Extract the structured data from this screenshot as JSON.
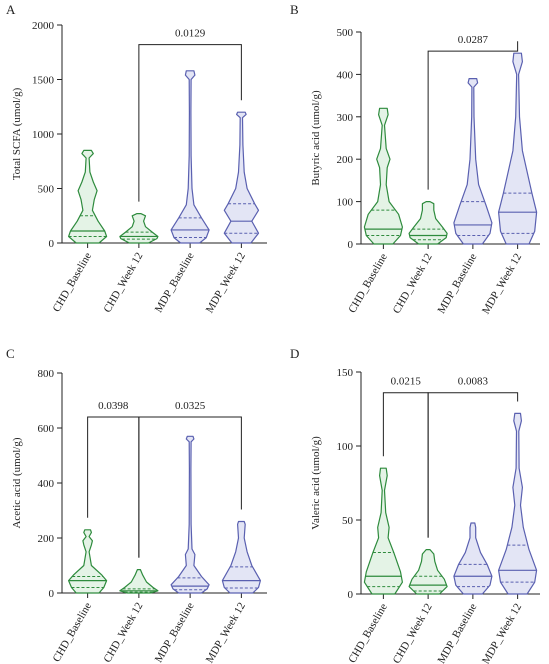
{
  "colors": {
    "green": "#2e8b3d",
    "greenFill": "#e4f3e6",
    "blue": "#5a60b0",
    "blueFill": "#e3e5f5",
    "axis": "#222222"
  },
  "chart_data": [
    {
      "type": "violin",
      "panel": "A",
      "ylabel": "Total SCFA (umol/g)",
      "ylim": [
        0,
        2000
      ],
      "yticks": [
        0,
        500,
        1000,
        1500,
        2000
      ],
      "categories": [
        "CHD_Baseline",
        "CHD_Week 12",
        "MDP_Baseline",
        "MDP_Week 12"
      ],
      "violins": [
        {
          "color": "green",
          "min": 0,
          "max": 850,
          "q1": 60,
          "median": 110,
          "q3": 250,
          "profile": [
            [
              0,
              0.6
            ],
            [
              60,
              1.0
            ],
            [
              110,
              0.9
            ],
            [
              200,
              0.55
            ],
            [
              300,
              0.25
            ],
            [
              400,
              0.35
            ],
            [
              480,
              0.5
            ],
            [
              560,
              0.3
            ],
            [
              650,
              0.12
            ],
            [
              780,
              0.08
            ],
            [
              820,
              0.3
            ],
            [
              850,
              0.2
            ]
          ]
        },
        {
          "color": "green",
          "min": 0,
          "max": 270,
          "q1": 35,
          "median": 60,
          "q3": 100,
          "profile": [
            [
              0,
              0.5
            ],
            [
              40,
              0.95
            ],
            [
              60,
              1.0
            ],
            [
              100,
              0.7
            ],
            [
              150,
              0.35
            ],
            [
              200,
              0.25
            ],
            [
              250,
              0.35
            ],
            [
              270,
              0.1
            ]
          ]
        },
        {
          "color": "blue",
          "min": 0,
          "max": 1580,
          "q1": 50,
          "median": 120,
          "q3": 230,
          "profile": [
            [
              0,
              0.5
            ],
            [
              50,
              0.85
            ],
            [
              120,
              1.0
            ],
            [
              230,
              0.6
            ],
            [
              350,
              0.2
            ],
            [
              500,
              0.1
            ],
            [
              800,
              0.05
            ],
            [
              1200,
              0.04
            ],
            [
              1500,
              0.05
            ],
            [
              1540,
              0.25
            ],
            [
              1580,
              0.2
            ]
          ]
        },
        {
          "color": "blue",
          "min": 0,
          "max": 1200,
          "q1": 90,
          "median": 200,
          "q3": 360,
          "profile": [
            [
              0,
              0.5
            ],
            [
              90,
              0.9
            ],
            [
              200,
              0.55
            ],
            [
              300,
              0.9
            ],
            [
              360,
              0.7
            ],
            [
              500,
              0.3
            ],
            [
              650,
              0.15
            ],
            [
              900,
              0.08
            ],
            [
              1150,
              0.06
            ],
            [
              1180,
              0.25
            ],
            [
              1200,
              0.2
            ]
          ]
        }
      ],
      "brackets": [
        {
          "from": 1,
          "to": 3,
          "label": "0.0129",
          "y": 1820
        }
      ]
    },
    {
      "type": "violin",
      "panel": "B",
      "ylabel": "Butyric acid (umol/g)",
      "ylim": [
        0,
        500
      ],
      "yticks": [
        0,
        100,
        200,
        300,
        400,
        500
      ],
      "categories": [
        "CHD_Baseline",
        "CHD_Week 12",
        "MDP_Baseline",
        "MDP_Week 12"
      ],
      "violins": [
        {
          "color": "green",
          "min": 0,
          "max": 320,
          "q1": 20,
          "median": 35,
          "q3": 80,
          "profile": [
            [
              0,
              0.5
            ],
            [
              20,
              0.9
            ],
            [
              40,
              1.0
            ],
            [
              70,
              0.8
            ],
            [
              100,
              0.3
            ],
            [
              140,
              0.15
            ],
            [
              180,
              0.2
            ],
            [
              200,
              0.35
            ],
            [
              225,
              0.15
            ],
            [
              280,
              0.06
            ],
            [
              305,
              0.25
            ],
            [
              320,
              0.2
            ]
          ]
        },
        {
          "color": "green",
          "min": 0,
          "max": 100,
          "q1": 10,
          "median": 20,
          "q3": 35,
          "profile": [
            [
              0,
              0.5
            ],
            [
              15,
              0.95
            ],
            [
              25,
              1.0
            ],
            [
              40,
              0.75
            ],
            [
              60,
              0.4
            ],
            [
              80,
              0.3
            ],
            [
              95,
              0.3
            ],
            [
              100,
              0.1
            ]
          ]
        },
        {
          "color": "blue",
          "min": 0,
          "max": 390,
          "q1": 20,
          "median": 45,
          "q3": 100,
          "profile": [
            [
              0,
              0.5
            ],
            [
              25,
              0.9
            ],
            [
              50,
              1.0
            ],
            [
              90,
              0.7
            ],
            [
              140,
              0.3
            ],
            [
              200,
              0.15
            ],
            [
              300,
              0.06
            ],
            [
              370,
              0.05
            ],
            [
              380,
              0.25
            ],
            [
              390,
              0.2
            ]
          ]
        },
        {
          "color": "blue",
          "min": 0,
          "max": 450,
          "q1": 25,
          "median": 75,
          "q3": 120,
          "profile": [
            [
              0,
              0.6
            ],
            [
              30,
              0.9
            ],
            [
              75,
              1.0
            ],
            [
              120,
              0.75
            ],
            [
              180,
              0.45
            ],
            [
              220,
              0.25
            ],
            [
              300,
              0.1
            ],
            [
              400,
              0.05
            ],
            [
              430,
              0.25
            ],
            [
              450,
              0.2
            ]
          ]
        }
      ],
      "brackets": [
        {
          "from": 1,
          "to": 3,
          "label": "0.0287",
          "y": 455
        }
      ]
    },
    {
      "type": "violin",
      "panel": "C",
      "ylabel": "Acetic acid (umol/g)",
      "ylim": [
        0,
        800
      ],
      "yticks": [
        0,
        200,
        400,
        600,
        800
      ],
      "categories": [
        "CHD_Baseline",
        "CHD_Week 12",
        "MDP_Baseline",
        "MDP_Week 12"
      ],
      "violins": [
        {
          "color": "green",
          "min": 0,
          "max": 230,
          "q1": 20,
          "median": 45,
          "q3": 60,
          "profile": [
            [
              0,
              0.6
            ],
            [
              20,
              0.85
            ],
            [
              45,
              1.0
            ],
            [
              65,
              0.75
            ],
            [
              100,
              0.2
            ],
            [
              150,
              0.08
            ],
            [
              175,
              0.2
            ],
            [
              190,
              0.25
            ],
            [
              205,
              0.08
            ],
            [
              220,
              0.2
            ],
            [
              230,
              0.15
            ]
          ]
        },
        {
          "color": "green",
          "min": 0,
          "max": 85,
          "q1": 3,
          "median": 8,
          "q3": 15,
          "profile": [
            [
              0,
              0.6
            ],
            [
              8,
              1.0
            ],
            [
              20,
              0.75
            ],
            [
              40,
              0.4
            ],
            [
              65,
              0.2
            ],
            [
              85,
              0.08
            ]
          ]
        },
        {
          "color": "blue",
          "min": 0,
          "max": 570,
          "q1": 12,
          "median": 25,
          "q3": 55,
          "profile": [
            [
              0,
              0.6
            ],
            [
              15,
              0.9
            ],
            [
              30,
              1.0
            ],
            [
              60,
              0.6
            ],
            [
              100,
              0.2
            ],
            [
              140,
              0.25
            ],
            [
              160,
              0.1
            ],
            [
              250,
              0.05
            ],
            [
              450,
              0.04
            ],
            [
              550,
              0.05
            ],
            [
              560,
              0.2
            ],
            [
              570,
              0.15
            ]
          ]
        },
        {
          "color": "blue",
          "min": 0,
          "max": 260,
          "q1": 18,
          "median": 45,
          "q3": 95,
          "profile": [
            [
              0,
              0.6
            ],
            [
              20,
              0.9
            ],
            [
              45,
              1.0
            ],
            [
              100,
              0.55
            ],
            [
              150,
              0.3
            ],
            [
              200,
              0.15
            ],
            [
              250,
              0.2
            ],
            [
              260,
              0.15
            ]
          ]
        }
      ],
      "brackets": [
        {
          "from": 0,
          "to": 1,
          "label": "0.0398",
          "y": 640
        },
        {
          "from": 1,
          "to": 3,
          "label": "0.0325",
          "y": 640
        }
      ]
    },
    {
      "type": "violin",
      "panel": "D",
      "ylabel": "Valeric acid (umol/g)",
      "ylim": [
        0,
        150
      ],
      "yticks": [
        0,
        50,
        100,
        150
      ],
      "categories": [
        "CHD_Baseline",
        "CHD_Week 12",
        "MDP_Baseline",
        "MDP_Week 12"
      ],
      "violins": [
        {
          "color": "green",
          "min": 0,
          "max": 85,
          "q1": 5,
          "median": 12,
          "q3": 28,
          "profile": [
            [
              0,
              0.6
            ],
            [
              8,
              1.0
            ],
            [
              15,
              0.9
            ],
            [
              28,
              0.55
            ],
            [
              38,
              0.25
            ],
            [
              45,
              0.3
            ],
            [
              55,
              0.12
            ],
            [
              70,
              0.06
            ],
            [
              80,
              0.2
            ],
            [
              85,
              0.15
            ]
          ]
        },
        {
          "color": "green",
          "min": 0,
          "max": 30,
          "q1": 2,
          "median": 6,
          "q3": 12,
          "profile": [
            [
              0,
              0.6
            ],
            [
              5,
              1.0
            ],
            [
              10,
              0.85
            ],
            [
              16,
              0.5
            ],
            [
              22,
              0.35
            ],
            [
              27,
              0.3
            ],
            [
              30,
              0.1
            ]
          ]
        },
        {
          "color": "blue",
          "min": 0,
          "max": 48,
          "q1": 5,
          "median": 12,
          "q3": 20,
          "profile": [
            [
              0,
              0.5
            ],
            [
              6,
              0.9
            ],
            [
              12,
              1.0
            ],
            [
              20,
              0.75
            ],
            [
              28,
              0.4
            ],
            [
              38,
              0.15
            ],
            [
              45,
              0.15
            ],
            [
              48,
              0.1
            ]
          ]
        },
        {
          "color": "blue",
          "min": 0,
          "max": 122,
          "q1": 8,
          "median": 16,
          "q3": 33,
          "profile": [
            [
              0,
              0.5
            ],
            [
              8,
              0.9
            ],
            [
              16,
              1.0
            ],
            [
              30,
              0.6
            ],
            [
              45,
              0.3
            ],
            [
              60,
              0.15
            ],
            [
              72,
              0.25
            ],
            [
              85,
              0.08
            ],
            [
              110,
              0.06
            ],
            [
              117,
              0.2
            ],
            [
              122,
              0.15
            ]
          ]
        }
      ],
      "brackets": [
        {
          "from": 0,
          "to": 1,
          "label": "0.0215",
          "y": 136
        },
        {
          "from": 1,
          "to": 3,
          "label": "0.0083",
          "y": 136
        }
      ]
    }
  ]
}
